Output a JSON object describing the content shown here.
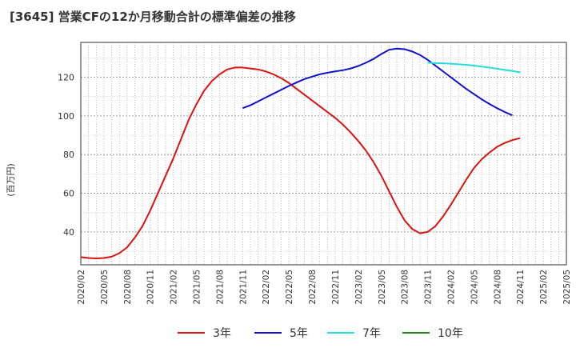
{
  "chart_data": {
    "type": "line",
    "title": "[3645]  営業CFの12か月移動合計の標準偏差の推移",
    "ylabel": "(百万円)",
    "xlabel": "",
    "ylim": [
      23,
      138
    ],
    "yticks": [
      40,
      60,
      80,
      100,
      120
    ],
    "xlim": [
      "2020/02",
      "2025/05"
    ],
    "xticks": [
      "2020/02",
      "2020/05",
      "2020/08",
      "2020/11",
      "2021/02",
      "2021/05",
      "2021/08",
      "2021/11",
      "2022/02",
      "2022/05",
      "2022/08",
      "2022/11",
      "2023/02",
      "2023/05",
      "2023/08",
      "2023/11",
      "2024/02",
      "2024/05",
      "2024/08",
      "2024/11",
      "2025/02",
      "2025/05"
    ],
    "grid": true,
    "legend_position": "bottom",
    "series": [
      {
        "name": "3年",
        "color": "#dd1111",
        "points": [
          [
            "2020/02",
            27
          ],
          [
            "2020/03",
            26.5
          ],
          [
            "2020/04",
            26.3
          ],
          [
            "2020/05",
            26.5
          ],
          [
            "2020/06",
            27.2
          ],
          [
            "2020/07",
            29
          ],
          [
            "2020/08",
            32
          ],
          [
            "2020/09",
            37
          ],
          [
            "2020/10",
            43
          ],
          [
            "2020/11",
            51
          ],
          [
            "2020/12",
            60
          ],
          [
            "2021/01",
            69
          ],
          [
            "2021/02",
            78
          ],
          [
            "2021/03",
            88
          ],
          [
            "2021/04",
            98
          ],
          [
            "2021/05",
            106
          ],
          [
            "2021/06",
            113
          ],
          [
            "2021/07",
            118
          ],
          [
            "2021/08",
            121.5
          ],
          [
            "2021/09",
            124
          ],
          [
            "2021/10",
            125
          ],
          [
            "2021/11",
            125
          ],
          [
            "2021/12",
            124.5
          ],
          [
            "2022/01",
            124
          ],
          [
            "2022/02",
            123
          ],
          [
            "2022/03",
            121.5
          ],
          [
            "2022/04",
            119.5
          ],
          [
            "2022/05",
            117
          ],
          [
            "2022/06",
            114
          ],
          [
            "2022/07",
            111
          ],
          [
            "2022/08",
            108
          ],
          [
            "2022/09",
            105
          ],
          [
            "2022/10",
            102
          ],
          [
            "2022/11",
            99
          ],
          [
            "2022/12",
            95.5
          ],
          [
            "2023/01",
            91.5
          ],
          [
            "2023/02",
            87
          ],
          [
            "2023/03",
            82
          ],
          [
            "2023/04",
            76
          ],
          [
            "2023/05",
            69
          ],
          [
            "2023/06",
            61
          ],
          [
            "2023/07",
            53
          ],
          [
            "2023/08",
            46
          ],
          [
            "2023/09",
            41.5
          ],
          [
            "2023/10",
            39.3
          ],
          [
            "2023/11",
            40
          ],
          [
            "2023/12",
            43
          ],
          [
            "2024/01",
            48
          ],
          [
            "2024/02",
            54
          ],
          [
            "2024/03",
            60.5
          ],
          [
            "2024/04",
            67
          ],
          [
            "2024/05",
            73
          ],
          [
            "2024/06",
            77.5
          ],
          [
            "2024/07",
            81
          ],
          [
            "2024/08",
            84
          ],
          [
            "2024/09",
            86
          ],
          [
            "2024/10",
            87.5
          ],
          [
            "2024/11",
            88.5
          ]
        ]
      },
      {
        "name": "5年",
        "color": "#1111cc",
        "points": [
          [
            "2021/11",
            104
          ],
          [
            "2021/12",
            105.5
          ],
          [
            "2022/01",
            107.5
          ],
          [
            "2022/02",
            109.5
          ],
          [
            "2022/03",
            111.5
          ],
          [
            "2022/04",
            113.5
          ],
          [
            "2022/05",
            115.5
          ],
          [
            "2022/06",
            117.3
          ],
          [
            "2022/07",
            119
          ],
          [
            "2022/08",
            120.3
          ],
          [
            "2022/09",
            121.5
          ],
          [
            "2022/10",
            122.3
          ],
          [
            "2022/11",
            123
          ],
          [
            "2022/12",
            123.6
          ],
          [
            "2023/01",
            124.5
          ],
          [
            "2023/02",
            125.8
          ],
          [
            "2023/03",
            127.5
          ],
          [
            "2023/04",
            129.5
          ],
          [
            "2023/05",
            132
          ],
          [
            "2023/06",
            134.2
          ],
          [
            "2023/07",
            134.8
          ],
          [
            "2023/08",
            134.5
          ],
          [
            "2023/09",
            133.3
          ],
          [
            "2023/10",
            131.5
          ],
          [
            "2023/11",
            129
          ],
          [
            "2023/12",
            126
          ],
          [
            "2024/01",
            123
          ],
          [
            "2024/02",
            120
          ],
          [
            "2024/03",
            117
          ],
          [
            "2024/04",
            114
          ],
          [
            "2024/05",
            111.3
          ],
          [
            "2024/06",
            108.6
          ],
          [
            "2024/07",
            106.2
          ],
          [
            "2024/08",
            104
          ],
          [
            "2024/09",
            102
          ],
          [
            "2024/10",
            100.3
          ]
        ]
      },
      {
        "name": "7年",
        "color": "#22dddd",
        "points": [
          [
            "2023/11",
            127.5
          ],
          [
            "2023/12",
            127.3
          ],
          [
            "2024/01",
            127.2
          ],
          [
            "2024/02",
            127
          ],
          [
            "2024/03",
            126.7
          ],
          [
            "2024/04",
            126.4
          ],
          [
            "2024/05",
            126
          ],
          [
            "2024/06",
            125.5
          ],
          [
            "2024/07",
            125
          ],
          [
            "2024/08",
            124.4
          ],
          [
            "2024/09",
            123.8
          ],
          [
            "2024/10",
            123.2
          ],
          [
            "2024/11",
            122.5
          ]
        ]
      },
      {
        "name": "10年",
        "color": "#228822",
        "points": []
      }
    ]
  }
}
